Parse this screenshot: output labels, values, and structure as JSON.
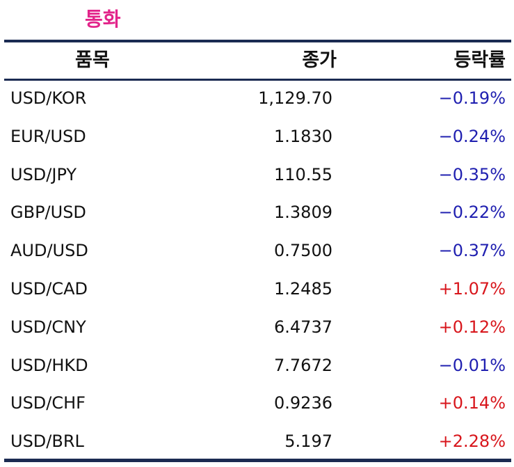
{
  "title": "통화",
  "headers": {
    "item": "품목",
    "close": "종가",
    "rate": "등락률"
  },
  "rows": [
    {
      "item": "USD/KOR",
      "close": "1,129.70",
      "rate": "−0.19%",
      "direction": "down"
    },
    {
      "item": "EUR/USD",
      "close": "1.1830",
      "rate": "−0.24%",
      "direction": "down"
    },
    {
      "item": "USD/JPY",
      "close": "110.55",
      "rate": "−0.35%",
      "direction": "down"
    },
    {
      "item": "GBP/USD",
      "close": "1.3809",
      "rate": "−0.22%",
      "direction": "down"
    },
    {
      "item": "AUD/USD",
      "close": "0.7500",
      "rate": "−0.37%",
      "direction": "down"
    },
    {
      "item": "USD/CAD",
      "close": "1.2485",
      "rate": "+1.07%",
      "direction": "up"
    },
    {
      "item": "USD/CNY",
      "close": "6.4737",
      "rate": "+0.12%",
      "direction": "up"
    },
    {
      "item": "USD/HKD",
      "close": "7.7672",
      "rate": "−0.01%",
      "direction": "down"
    },
    {
      "item": "USD/CHF",
      "close": "0.9236",
      "rate": "+0.14%",
      "direction": "up"
    },
    {
      "item": "USD/BRL",
      "close": "5.197",
      "rate": "+2.28%",
      "direction": "up"
    }
  ],
  "colors": {
    "title": "#e2248a",
    "rule": "#1b2b52",
    "down": "#1f1fb0",
    "up": "#d8161c"
  }
}
